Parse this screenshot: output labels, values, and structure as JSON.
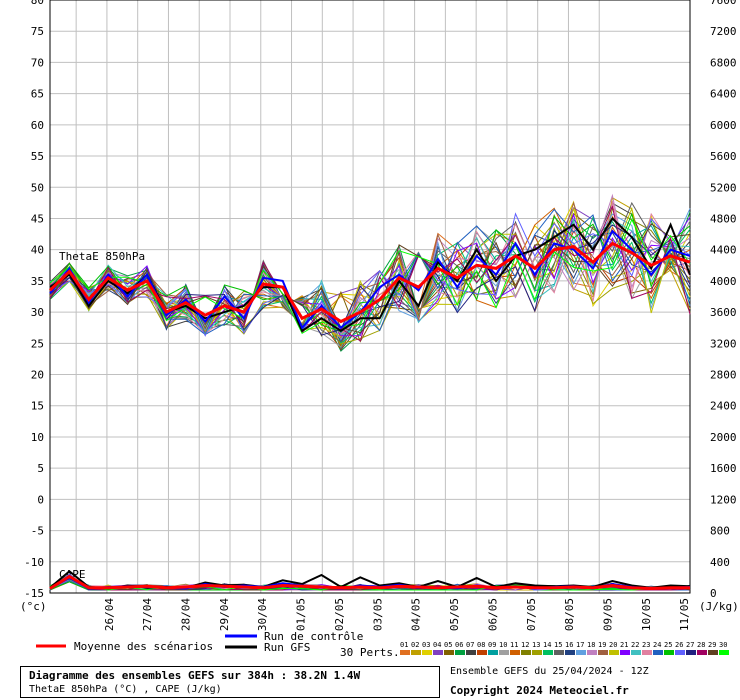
{
  "header": {
    "title": "Diagramme des ensembles GEFS sur 384h : 38.2N 1.4W",
    "subtitle": "ThetaE 850hPa (°C) , CAPE (J/kg)",
    "run": "Ensemble GEFS du 25/04/2024 - 12Z",
    "copyright": "Copyright 2024 Meteociel.fr"
  },
  "legend": {
    "moyenne": "Moyenne des scénarios",
    "controle": "Run de contrôle",
    "gfs": "Run GFS",
    "perts_label": "30 Perts.",
    "perts": [
      "01",
      "02",
      "03",
      "04",
      "05",
      "06",
      "07",
      "08",
      "09",
      "10",
      "11",
      "12",
      "13",
      "14",
      "15",
      "16",
      "17",
      "18",
      "19",
      "20",
      "21",
      "22",
      "23",
      "24",
      "25",
      "26",
      "27",
      "28",
      "29",
      "30"
    ]
  },
  "chart_data": {
    "type": "line",
    "x_labels": [
      "26/04",
      "27/04",
      "28/04",
      "29/04",
      "30/04",
      "01/05",
      "02/05",
      "03/05",
      "04/05",
      "05/05",
      "06/05",
      "07/05",
      "08/05",
      "09/05",
      "10/05",
      "11/05"
    ],
    "left_axis": {
      "unit": "(°c)",
      "ticks": [
        80,
        75,
        70,
        65,
        60,
        55,
        50,
        45,
        40,
        35,
        30,
        25,
        20,
        15,
        10,
        5,
        0,
        -5,
        -10,
        -15
      ],
      "tick_labels": [
        "80",
        "75",
        "70",
        "65",
        "60",
        "55",
        "50",
        "45",
        "40",
        "35",
        "30",
        "25",
        "20",
        "15",
        "10",
        "5",
        "0",
        "-5",
        "-10",
        "-15"
      ],
      "range": [
        -15,
        80
      ]
    },
    "right_axis": {
      "unit": "(J/kg)",
      "ticks": [
        7600,
        7200,
        6800,
        6400,
        6000,
        5600,
        5200,
        4800,
        4400,
        4000,
        3600,
        3200,
        2800,
        2400,
        2000,
        1600,
        1200,
        800,
        400,
        0
      ],
      "range": [
        0,
        7600
      ]
    },
    "panel_labels": {
      "thetae": "ThetaE 850hPa",
      "cape": "CAPE"
    },
    "series": [
      {
        "name": "Moyenne des scénarios",
        "color": "#ff0000",
        "thetae": [
          33.5,
          36.5,
          32,
          35.5,
          33.5,
          35,
          30,
          31.5,
          29.5,
          31,
          30,
          34.5,
          34,
          29,
          30.5,
          28.5,
          30,
          32,
          35.5,
          34,
          37,
          35.5,
          37.5,
          37,
          39,
          37,
          40,
          40.5,
          38,
          41,
          39.5,
          37.5,
          39,
          38
        ],
        "cape": [
          20,
          180,
          30,
          30,
          40,
          50,
          30,
          40,
          60,
          50,
          40,
          30,
          60,
          50,
          40,
          30,
          40,
          30,
          50,
          40,
          30,
          40,
          50,
          30,
          40,
          30,
          30,
          40,
          30,
          60,
          30,
          20,
          30,
          30
        ]
      },
      {
        "name": "Run de contrôle",
        "color": "#0000ff",
        "thetae": [
          33,
          37,
          31.5,
          36,
          32.5,
          36,
          29.5,
          32,
          28.5,
          32.5,
          29,
          35.5,
          35,
          27.5,
          31,
          27.5,
          30,
          34,
          36,
          33.5,
          38.5,
          34,
          39,
          36,
          41,
          36,
          41,
          40,
          37,
          43,
          40,
          36,
          40,
          39
        ],
        "cape": [
          20,
          160,
          20,
          40,
          50,
          40,
          30,
          20,
          80,
          40,
          60,
          40,
          90,
          60,
          40,
          20,
          60,
          40,
          70,
          30,
          40,
          20,
          60,
          30,
          50,
          20,
          40,
          50,
          20,
          80,
          40,
          20,
          30,
          40
        ]
      },
      {
        "name": "Run GFS",
        "color": "#000000",
        "thetae": [
          34,
          36,
          31,
          35,
          33,
          36,
          30,
          31,
          29,
          30,
          31,
          34,
          34,
          27,
          29,
          27,
          29,
          29,
          35,
          31,
          38,
          35,
          40,
          35,
          39,
          40,
          42,
          44,
          40,
          45,
          42,
          37,
          44,
          36
        ],
        "cape": [
          30,
          250,
          40,
          20,
          60,
          30,
          40,
          30,
          100,
          60,
          70,
          40,
          130,
          80,
          200,
          40,
          170,
          60,
          90,
          40,
          120,
          40,
          160,
          40,
          90,
          60,
          50,
          60,
          40,
          120,
          60,
          30,
          60,
          50
        ]
      }
    ]
  }
}
